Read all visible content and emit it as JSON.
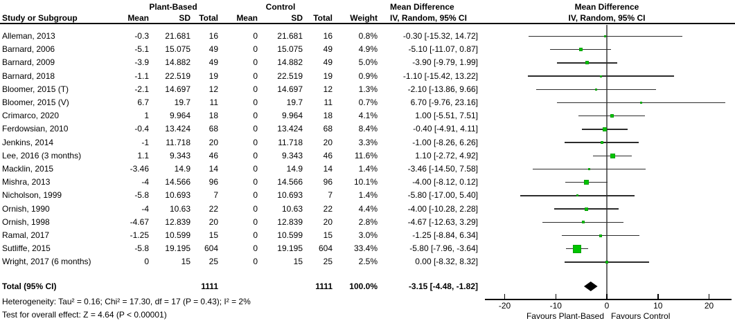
{
  "header": {
    "study_col": "Study or Subgroup",
    "group1": "Plant-Based",
    "group2": "Control",
    "sub_cols": [
      "Mean",
      "SD",
      "Total",
      "Mean",
      "SD",
      "Total",
      "Weight"
    ],
    "md_col_line1": "Mean Difference",
    "md_col_line2": "IV, Random, 95% CI",
    "plot_line1": "Mean Difference",
    "plot_line2": "IV, Random, 95% CI"
  },
  "chart_data": {
    "type": "scatter",
    "subtype": "forest-plot-meta-analysis",
    "effect_measure": "Mean Difference, IV, Random, 95% CI",
    "xlim": [
      -24,
      24
    ],
    "axis_ticks": [
      -20,
      -10,
      0,
      10,
      20
    ],
    "favours_left": "Favours Plant-Based",
    "favours_right": "Favours Control",
    "marker_color": "#00c400",
    "studies": [
      {
        "name": "Alleman, 2013",
        "mean1": "-0.3",
        "sd1": "21.681",
        "n1": "16",
        "mean2": "0",
        "sd2": "21.681",
        "n2": "16",
        "weight": "0.8%",
        "w": 0.8,
        "md": -0.3,
        "lo": -15.32,
        "hi": 14.72,
        "label": "-0.30 [-15.32, 14.72]"
      },
      {
        "name": "Barnard, 2006",
        "mean1": "-5.1",
        "sd1": "15.075",
        "n1": "49",
        "mean2": "0",
        "sd2": "15.075",
        "n2": "49",
        "weight": "4.9%",
        "w": 4.9,
        "md": -5.1,
        "lo": -11.07,
        "hi": 0.87,
        "label": "-5.10 [-11.07, 0.87]"
      },
      {
        "name": "Barnard, 2009",
        "mean1": "-3.9",
        "sd1": "14.882",
        "n1": "49",
        "mean2": "0",
        "sd2": "14.882",
        "n2": "49",
        "weight": "5.0%",
        "w": 5.0,
        "md": -3.9,
        "lo": -9.79,
        "hi": 1.99,
        "label": "-3.90 [-9.79, 1.99]"
      },
      {
        "name": "Barnard, 2018",
        "mean1": "-1.1",
        "sd1": "22.519",
        "n1": "19",
        "mean2": "0",
        "sd2": "22.519",
        "n2": "19",
        "weight": "0.9%",
        "w": 0.9,
        "md": -1.1,
        "lo": -15.42,
        "hi": 13.22,
        "label": "-1.10 [-15.42, 13.22]"
      },
      {
        "name": "Bloomer, 2015 (T)",
        "mean1": "-2.1",
        "sd1": "14.697",
        "n1": "12",
        "mean2": "0",
        "sd2": "14.697",
        "n2": "12",
        "weight": "1.3%",
        "w": 1.3,
        "md": -2.1,
        "lo": -13.86,
        "hi": 9.66,
        "label": "-2.10 [-13.86, 9.66]"
      },
      {
        "name": "Bloomer, 2015 (V)",
        "mean1": "6.7",
        "sd1": "19.7",
        "n1": "11",
        "mean2": "0",
        "sd2": "19.7",
        "n2": "11",
        "weight": "0.7%",
        "w": 0.7,
        "md": 6.7,
        "lo": -9.76,
        "hi": 23.16,
        "label": "6.70 [-9.76, 23.16]"
      },
      {
        "name": "Crimarco, 2020",
        "mean1": "1",
        "sd1": "9.964",
        "n1": "18",
        "mean2": "0",
        "sd2": "9.964",
        "n2": "18",
        "weight": "4.1%",
        "w": 4.1,
        "md": 1.0,
        "lo": -5.51,
        "hi": 7.51,
        "label": "1.00 [-5.51, 7.51]"
      },
      {
        "name": "Ferdowsian, 2010",
        "mean1": "-0.4",
        "sd1": "13.424",
        "n1": "68",
        "mean2": "0",
        "sd2": "13.424",
        "n2": "68",
        "weight": "8.4%",
        "w": 8.4,
        "md": -0.4,
        "lo": -4.91,
        "hi": 4.11,
        "label": "-0.40 [-4.91, 4.11]"
      },
      {
        "name": "Jenkins, 2014",
        "mean1": "-1",
        "sd1": "11.718",
        "n1": "20",
        "mean2": "0",
        "sd2": "11.718",
        "n2": "20",
        "weight": "3.3%",
        "w": 3.3,
        "md": -1.0,
        "lo": -8.26,
        "hi": 6.26,
        "label": "-1.00 [-8.26, 6.26]"
      },
      {
        "name": "Lee, 2016 (3 months)",
        "mean1": "1.1",
        "sd1": "9.343",
        "n1": "46",
        "mean2": "0",
        "sd2": "9.343",
        "n2": "46",
        "weight": "11.6%",
        "w": 11.6,
        "md": 1.1,
        "lo": -2.72,
        "hi": 4.92,
        "label": "1.10 [-2.72, 4.92]"
      },
      {
        "name": "Macklin, 2015",
        "mean1": "-3.46",
        "sd1": "14.9",
        "n1": "14",
        "mean2": "0",
        "sd2": "14.9",
        "n2": "14",
        "weight": "1.4%",
        "w": 1.4,
        "md": -3.46,
        "lo": -14.5,
        "hi": 7.58,
        "label": "-3.46 [-14.50, 7.58]"
      },
      {
        "name": "Mishra, 2013",
        "mean1": "-4",
        "sd1": "14.566",
        "n1": "96",
        "mean2": "0",
        "sd2": "14.566",
        "n2": "96",
        "weight": "10.1%",
        "w": 10.1,
        "md": -4.0,
        "lo": -8.12,
        "hi": 0.12,
        "label": "-4.00 [-8.12, 0.12]"
      },
      {
        "name": "Nicholson, 1999",
        "mean1": "-5.8",
        "sd1": "10.693",
        "n1": "7",
        "mean2": "0",
        "sd2": "10.693",
        "n2": "7",
        "weight": "1.4%",
        "w": 1.4,
        "md": -5.8,
        "lo": -17.0,
        "hi": 5.4,
        "label": "-5.80 [-17.00, 5.40]"
      },
      {
        "name": "Ornish, 1990",
        "mean1": "-4",
        "sd1": "10.63",
        "n1": "22",
        "mean2": "0",
        "sd2": "10.63",
        "n2": "22",
        "weight": "4.4%",
        "w": 4.4,
        "md": -4.0,
        "lo": -10.28,
        "hi": 2.28,
        "label": "-4.00 [-10.28, 2.28]"
      },
      {
        "name": "Ornish, 1998",
        "mean1": "-4.67",
        "sd1": "12.839",
        "n1": "20",
        "mean2": "0",
        "sd2": "12.839",
        "n2": "20",
        "weight": "2.8%",
        "w": 2.8,
        "md": -4.67,
        "lo": -12.63,
        "hi": 3.29,
        "label": "-4.67 [-12.63, 3.29]"
      },
      {
        "name": "Ramal, 2017",
        "mean1": "-1.25",
        "sd1": "10.599",
        "n1": "15",
        "mean2": "0",
        "sd2": "10.599",
        "n2": "15",
        "weight": "3.0%",
        "w": 3.0,
        "md": -1.25,
        "lo": -8.84,
        "hi": 6.34,
        "label": "-1.25 [-8.84, 6.34]"
      },
      {
        "name": "Sutliffe, 2015",
        "mean1": "-5.8",
        "sd1": "19.195",
        "n1": "604",
        "mean2": "0",
        "sd2": "19.195",
        "n2": "604",
        "weight": "33.4%",
        "w": 33.4,
        "md": -5.8,
        "lo": -7.96,
        "hi": -3.64,
        "label": "-5.80 [-7.96, -3.64]"
      },
      {
        "name": "Wright, 2017 (6 months)",
        "mean1": "0",
        "sd1": "15",
        "n1": "25",
        "mean2": "0",
        "sd2": "15",
        "n2": "25",
        "weight": "2.5%",
        "w": 2.5,
        "md": 0.0,
        "lo": -8.32,
        "hi": 8.32,
        "label": "0.00 [-8.32, 8.32]"
      }
    ],
    "total": {
      "name": "Total (95% CI)",
      "n1": "1111",
      "n2": "1111",
      "weight": "100.0%",
      "md": -3.15,
      "lo": -4.48,
      "hi": -1.82,
      "label": "-3.15 [-4.48, -1.82]"
    }
  },
  "footer": {
    "heterogeneity": "Heterogeneity: Tau² = 0.16; Chi² = 17.30, df = 17 (P = 0.43); I² = 2%",
    "overall": "Test for overall effect: Z = 4.64 (P < 0.00001)"
  }
}
